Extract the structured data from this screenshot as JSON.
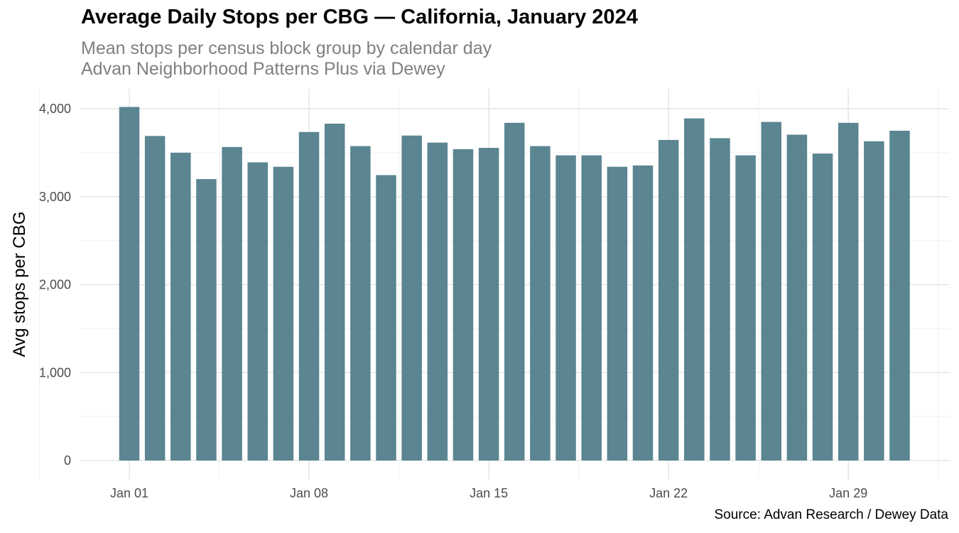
{
  "chart_data": {
    "type": "bar",
    "title": "Average Daily Stops per CBG — California, January 2024",
    "subtitle": [
      "Mean stops per census block group by calendar day",
      "Advan Neighborhood Patterns Plus via Dewey"
    ],
    "caption": "Source: Advan Research / Dewey Data",
    "xlabel": "",
    "ylabel": "Avg stops per CBG",
    "x": [
      "2024-01-01",
      "2024-01-02",
      "2024-01-03",
      "2024-01-04",
      "2024-01-05",
      "2024-01-06",
      "2024-01-07",
      "2024-01-08",
      "2024-01-09",
      "2024-01-10",
      "2024-01-11",
      "2024-01-12",
      "2024-01-13",
      "2024-01-14",
      "2024-01-15",
      "2024-01-16",
      "2024-01-17",
      "2024-01-18",
      "2024-01-19",
      "2024-01-20",
      "2024-01-21",
      "2024-01-22",
      "2024-01-23",
      "2024-01-24",
      "2024-01-25",
      "2024-01-26",
      "2024-01-27",
      "2024-01-28",
      "2024-01-29",
      "2024-01-30",
      "2024-01-31"
    ],
    "values": [
      4020,
      3690,
      3500,
      3200,
      3565,
      3390,
      3340,
      3735,
      3830,
      3575,
      3245,
      3695,
      3615,
      3540,
      3555,
      3840,
      3575,
      3470,
      3470,
      3340,
      3355,
      3645,
      3890,
      3665,
      3470,
      3850,
      3705,
      3490,
      3840,
      3630,
      3750
    ],
    "x_ticks": [
      "Jan 01",
      "Jan 08",
      "Jan 15",
      "Jan 22",
      "Jan 29"
    ],
    "y_ticks": [
      0,
      1000,
      2000,
      3000,
      4000
    ],
    "y_tick_labels": [
      "0",
      "1,000",
      "2,000",
      "3,000",
      "4,000"
    ],
    "ylim": [
      0,
      4250
    ],
    "grid": true,
    "bar_color": "#5a8591"
  }
}
